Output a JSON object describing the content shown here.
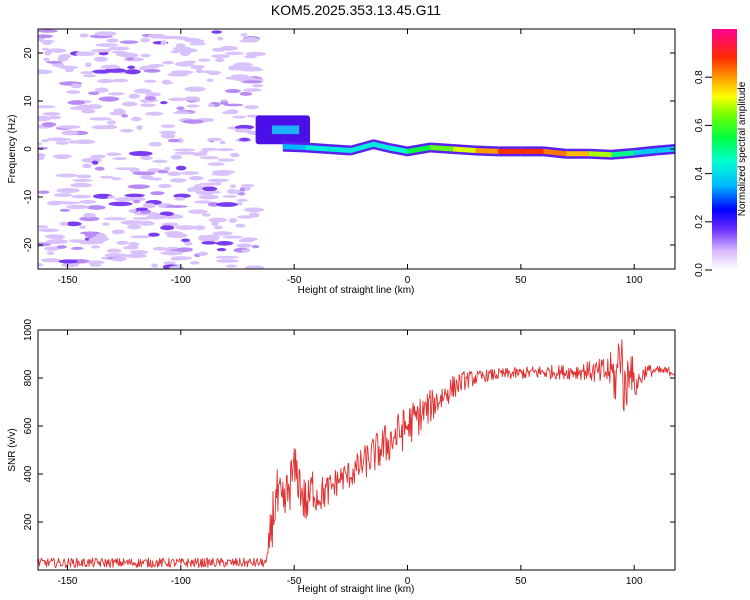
{
  "title": "KOM5.2025.353.13.45.G11",
  "chart_data": [
    {
      "type": "heatmap",
      "xlabel": "Height of straight line (km)",
      "ylabel": "Frequency (Hz)",
      "xlim": [
        -163,
        118
      ],
      "ylim": [
        -25,
        25
      ],
      "xticks": [
        -150,
        -100,
        -50,
        0,
        50,
        100
      ],
      "yticks": [
        -20,
        -10,
        0,
        10,
        20
      ],
      "noise_region": {
        "x_range": [
          -163,
          -66
        ],
        "amplitude": 0.12
      },
      "signal_burst": {
        "x_range": [
          -67,
          -43
        ],
        "freq_range": [
          1,
          7
        ],
        "amplitude": 0.4
      },
      "signal_band": [
        {
          "x": -55,
          "freq": 0.5,
          "amplitude": 0.3
        },
        {
          "x": -45,
          "freq": 0.3,
          "amplitude": 0.4
        },
        {
          "x": -35,
          "freq": 0.0,
          "amplitude": 0.45
        },
        {
          "x": -25,
          "freq": -0.3,
          "amplitude": 0.4
        },
        {
          "x": -15,
          "freq": 1.0,
          "amplitude": 0.45
        },
        {
          "x": -8,
          "freq": 0.2,
          "amplitude": 0.4
        },
        {
          "x": 0,
          "freq": -0.5,
          "amplitude": 0.5
        },
        {
          "x": 10,
          "freq": 0.3,
          "amplitude": 0.6
        },
        {
          "x": 20,
          "freq": 0.0,
          "amplitude": 0.65
        },
        {
          "x": 30,
          "freq": -0.3,
          "amplitude": 0.75
        },
        {
          "x": 40,
          "freq": -0.5,
          "amplitude": 0.85
        },
        {
          "x": 50,
          "freq": -0.5,
          "amplitude": 0.9
        },
        {
          "x": 60,
          "freq": -0.5,
          "amplitude": 0.85
        },
        {
          "x": 70,
          "freq": -1.0,
          "amplitude": 0.8
        },
        {
          "x": 80,
          "freq": -1.0,
          "amplitude": 0.75
        },
        {
          "x": 90,
          "freq": -1.2,
          "amplitude": 0.6
        },
        {
          "x": 100,
          "freq": -0.8,
          "amplitude": 0.4
        },
        {
          "x": 110,
          "freq": -0.3,
          "amplitude": 0.35
        },
        {
          "x": 118,
          "freq": 0.0,
          "amplitude": 0.4
        }
      ]
    },
    {
      "type": "colorbar",
      "label": "Normalized spectral amplitude",
      "range": [
        0,
        1
      ],
      "ticks": [
        "0.0",
        "0.2",
        "0.4",
        "0.6",
        "0.8"
      ],
      "tick_values": [
        0,
        0.2,
        0.4,
        0.6,
        0.8
      ]
    },
    {
      "type": "line",
      "xlabel": "Height of straight line (km)",
      "ylabel": "SNR (v/v)",
      "xlim": [
        -163,
        118
      ],
      "ylim": [
        0,
        1000
      ],
      "xticks": [
        -150,
        -100,
        -50,
        0,
        50,
        100
      ],
      "yticks": [
        200,
        400,
        600,
        800,
        1000
      ],
      "color": "#e03030",
      "series": [
        {
          "name": "SNR",
          "x": [
            -163,
            -100,
            -62,
            -60,
            -58,
            -55,
            -52,
            -50,
            -48,
            -46,
            -44,
            -42,
            -40,
            -35,
            -30,
            -25,
            -20,
            -15,
            -10,
            -5,
            0,
            5,
            10,
            15,
            20,
            25,
            30,
            35,
            40,
            50,
            60,
            70,
            80,
            85,
            90,
            92,
            94,
            96,
            98,
            100,
            105,
            110,
            118
          ],
          "y": [
            30,
            30,
            30,
            200,
            300,
            250,
            350,
            420,
            380,
            300,
            270,
            350,
            310,
            330,
            380,
            400,
            440,
            480,
            520,
            560,
            600,
            640,
            680,
            720,
            760,
            790,
            800,
            810,
            815,
            820,
            825,
            825,
            830,
            820,
            830,
            780,
            950,
            700,
            900,
            760,
            830,
            830,
            825
          ],
          "noise": [
            20,
            20,
            20,
            120,
            130,
            120,
            110,
            100,
            100,
            100,
            100,
            90,
            80,
            70,
            60,
            60,
            70,
            80,
            90,
            90,
            90,
            80,
            70,
            60,
            50,
            40,
            30,
            25,
            25,
            25,
            30,
            30,
            40,
            60,
            80,
            120,
            150,
            140,
            120,
            60,
            30,
            20,
            20
          ]
        }
      ]
    }
  ]
}
